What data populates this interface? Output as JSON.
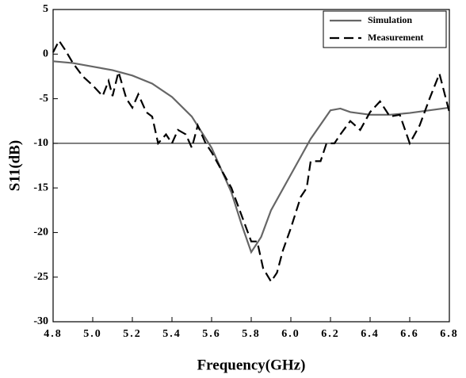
{
  "chart_data": {
    "type": "line",
    "xlabel": "Frequency(GHz)",
    "ylabel": "S11(dB)",
    "xlim": [
      4.8,
      6.8
    ],
    "ylim": [
      -30,
      5
    ],
    "xticks": [
      4.8,
      {
        "value": 5,
        "label": "5.0"
      },
      5.2,
      5.4,
      5.6,
      5.8,
      {
        "value": 6,
        "label": "6.0"
      },
      6.2,
      6.4,
      6.6,
      6.8
    ],
    "yticks": [
      -30,
      -25,
      -20,
      -15,
      -10,
      -5,
      0,
      5
    ],
    "reference_line": -10,
    "legend": "upper right",
    "series": [
      {
        "name": "Simulation",
        "color": "#666666",
        "dash": false,
        "x": [
          4.8,
          4.9,
          5.0,
          5.1,
          5.2,
          5.3,
          5.4,
          5.5,
          5.6,
          5.7,
          5.75,
          5.8,
          5.85,
          5.9,
          6.0,
          6.1,
          6.2,
          6.25,
          6.3,
          6.4,
          6.5,
          6.6,
          6.7,
          6.8
        ],
        "values": [
          -0.8,
          -1.0,
          -1.4,
          -1.8,
          -2.4,
          -3.3,
          -4.8,
          -7.0,
          -10.5,
          -15.5,
          -19,
          -22.2,
          -20.5,
          -17.5,
          -13.5,
          -9.5,
          -6.3,
          -6.1,
          -6.5,
          -6.8,
          -6.8,
          -6.6,
          -6.3,
          -6.0
        ]
      },
      {
        "name": "Measurement",
        "color": "#000000",
        "dash": true,
        "x": [
          4.8,
          4.83,
          4.86,
          4.9,
          4.95,
          5.0,
          5.05,
          5.08,
          5.1,
          5.13,
          5.17,
          5.2,
          5.23,
          5.27,
          5.3,
          5.33,
          5.37,
          5.4,
          5.43,
          5.47,
          5.5,
          5.53,
          5.57,
          5.6,
          5.65,
          5.7,
          5.75,
          5.8,
          5.83,
          5.86,
          5.9,
          5.93,
          5.96,
          6.0,
          6.05,
          6.08,
          6.1,
          6.15,
          6.18,
          6.22,
          6.25,
          6.3,
          6.35,
          6.4,
          6.45,
          6.5,
          6.55,
          6.6,
          6.65,
          6.7,
          6.75,
          6.8
        ],
        "values": [
          0.2,
          1.5,
          0.5,
          -1.0,
          -2.5,
          -3.5,
          -4.7,
          -3.0,
          -4.7,
          -2.0,
          -5.0,
          -6.0,
          -4.5,
          -6.5,
          -7.0,
          -10.0,
          -9.0,
          -10.0,
          -8.5,
          -9.0,
          -10.5,
          -8.0,
          -10.0,
          -11.0,
          -13.0,
          -15.0,
          -18,
          -21,
          -21.0,
          -24,
          -25.5,
          -24.5,
          -22,
          -19.5,
          -16,
          -15,
          -12,
          -12,
          -10,
          -10,
          -9.0,
          -7.5,
          -8.5,
          -6.5,
          -5.3,
          -7.0,
          -6.8,
          -10.0,
          -8.0,
          -5.0,
          -2.2,
          -6.5
        ]
      }
    ]
  }
}
